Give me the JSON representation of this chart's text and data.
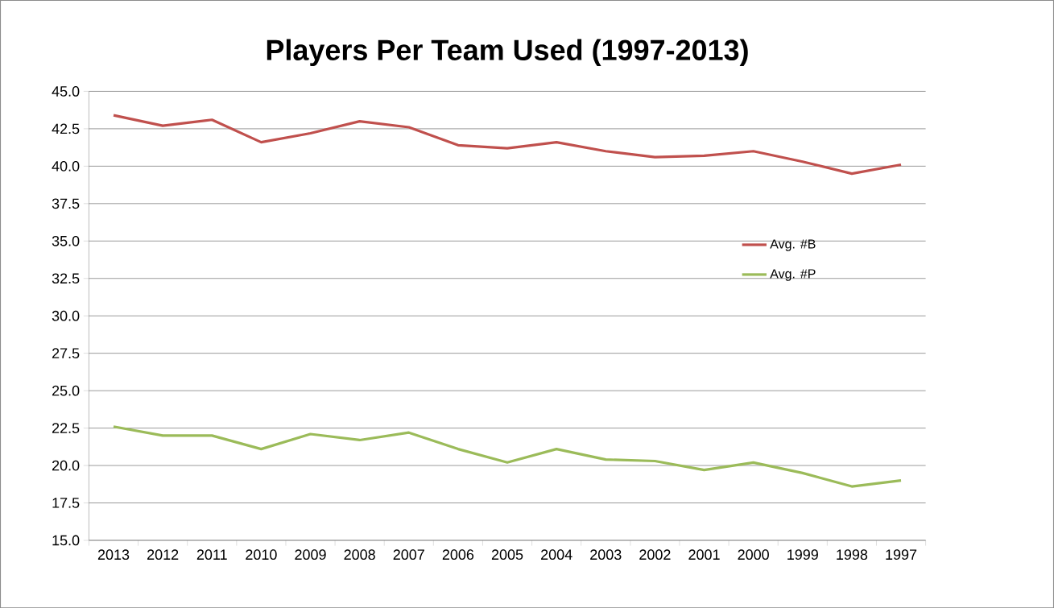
{
  "chart_data": {
    "type": "line",
    "title": "Players Per Team Used (1997-2013)",
    "categories": [
      "2013",
      "2012",
      "2011",
      "2010",
      "2009",
      "2008",
      "2007",
      "2006",
      "2005",
      "2004",
      "2003",
      "2002",
      "2001",
      "2000",
      "1999",
      "1998",
      "1997"
    ],
    "series": [
      {
        "name": "Avg. #B",
        "color": "#c0504d",
        "values": [
          43.4,
          42.7,
          43.1,
          41.6,
          42.2,
          43.0,
          42.6,
          41.4,
          41.2,
          41.6,
          41.0,
          40.6,
          40.7,
          41.0,
          40.3,
          39.5,
          40.1
        ]
      },
      {
        "name": "Avg. #P",
        "color": "#9bbb59",
        "values": [
          22.6,
          22.0,
          22.0,
          21.1,
          22.1,
          21.7,
          22.2,
          21.1,
          20.2,
          21.1,
          20.4,
          20.3,
          19.7,
          20.2,
          19.5,
          18.6,
          19.0
        ]
      }
    ],
    "ylim": [
      15,
      45
    ],
    "yticks": [
      {
        "value": 15,
        "label": "15.0"
      },
      {
        "value": 17.5,
        "label": "17.5"
      },
      {
        "value": 20,
        "label": "20.0"
      },
      {
        "value": 22.5,
        "label": "22.5"
      },
      {
        "value": 25,
        "label": "25.0"
      },
      {
        "value": 27.5,
        "label": "27.5"
      },
      {
        "value": 30,
        "label": "30.0"
      },
      {
        "value": 32.5,
        "label": "32.5"
      },
      {
        "value": 35,
        "label": "35.0"
      },
      {
        "value": 37.5,
        "label": "37.5"
      },
      {
        "value": 40,
        "label": "40.0"
      },
      {
        "value": 42.5,
        "label": "42.5"
      },
      {
        "value": 45,
        "label": "45.0"
      }
    ],
    "grid": "y",
    "legend": "right",
    "marker": "none",
    "line_style": "solid"
  }
}
